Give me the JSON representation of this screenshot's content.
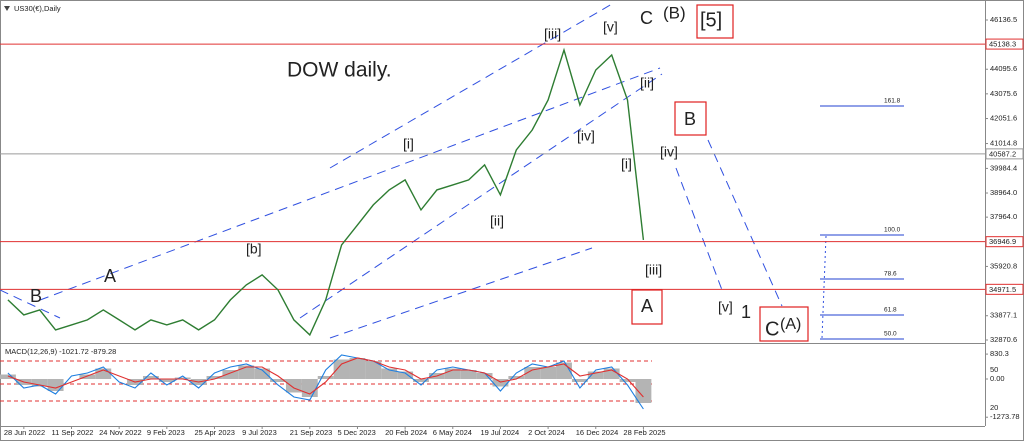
{
  "chart_data": [
    {
      "type": "line",
      "title": "US30(€),Daily",
      "subtitle": "DOW daily.",
      "categories": [
        null,
        "28 Jun 2022",
        null,
        null,
        "11 Sep 2022",
        null,
        null,
        "24 Nov 2022",
        null,
        null,
        "9 Feb 2023",
        null,
        null,
        "25 Apr 2023",
        null,
        null,
        "9 Jul 2023",
        null,
        null,
        "21 Sep 2023",
        null,
        null,
        "5 Dec 2023",
        null,
        null,
        "20 Feb 2024",
        null,
        null,
        "6 May 2024",
        null,
        null,
        "19 Jul 2024",
        null,
        null,
        "2 Oct 2024",
        null,
        null,
        "16 Dec 2024",
        null,
        null,
        "28 Feb 2025",
        null,
        null,
        null,
        null,
        null,
        null,
        null,
        null,
        null,
        null,
        null,
        null,
        null,
        null,
        null,
        null,
        null,
        null,
        null,
        null,
        null
      ],
      "values": [
        34533,
        33912,
        34119,
        33290,
        33497,
        33704,
        34119,
        33704,
        33290,
        33704,
        33497,
        33704,
        33290,
        33704,
        34533,
        35155,
        35570,
        34948,
        33704,
        33083,
        34533,
        36813,
        37642,
        38470,
        39092,
        39506,
        38263,
        39092,
        39299,
        39506,
        40128,
        38885,
        40749,
        41578,
        42821,
        44893,
        42614,
        44064,
        44686,
        42821,
        37020,
        null,
        null,
        null,
        null,
        null,
        null,
        null,
        null,
        null,
        null,
        null,
        null,
        null,
        null,
        null,
        null,
        null,
        null,
        null,
        null,
        null
      ],
      "color": "#2e7d32",
      "ylim": [
        32788,
        46634
      ],
      "yticks": [
        46136.5,
        44095.6,
        43075.6,
        42051.6,
        41014.8,
        39984.4,
        {
          "value": 38964,
          "label": "38964.0"
        },
        {
          "value": 37964,
          "label": "37964.0"
        },
        35920.8,
        33877.1,
        32870.6
      ],
      "hlines": [
        {
          "value": 45138.3,
          "color": "#e03030"
        },
        {
          "value": 40587.2,
          "color": "#9a9a9a"
        },
        {
          "value": 36946.9,
          "color": "#e03030"
        },
        {
          "value": 34971.5,
          "color": "#e03030"
        }
      ],
      "fib_levels": [
        161.8,
        {
          "value": 100,
          "label": "100.0"
        },
        78.6,
        61.8,
        {
          "value": 50,
          "label": "50.0"
        }
      ],
      "annotations": [
        {
          "text": "[5]",
          "color": "#111111",
          "boxed": true
        },
        {
          "text": "C",
          "color": "#1a1ad0",
          "boxed": false
        },
        {
          "text": "(B)",
          "color": "#e02020",
          "boxed": false
        },
        {
          "text": "[iii]",
          "color": "#2e8b2e",
          "boxed": false
        },
        {
          "text": "[v]",
          "color": "#2e8b2e",
          "boxed": false
        },
        {
          "text": "[ii]",
          "color": "#2e8b2e",
          "boxed": false
        },
        {
          "text": "[i]",
          "color": "#2e8b2e",
          "boxed": false
        },
        {
          "text": "[iv]",
          "color": "#2e8b2e",
          "boxed": false
        },
        {
          "text": "[i]",
          "color": "#2e8b2e",
          "boxed": false
        },
        {
          "text": "[iv]",
          "color": "#2e8b2e",
          "boxed": false
        },
        {
          "text": "[ii]",
          "color": "#2e8b2e",
          "boxed": false
        },
        {
          "text": "[iii]",
          "color": "#2e8b2e",
          "boxed": false
        },
        {
          "text": "[b]",
          "color": "#2e8b2e",
          "boxed": false
        },
        {
          "text": "A",
          "color": "#1a1ad0",
          "boxed": false
        },
        {
          "text": "B",
          "color": "#1a1ad0",
          "boxed": false
        },
        {
          "text": "B",
          "color": "#1a1ad0",
          "boxed": true
        },
        {
          "text": "A",
          "color": "#1a1ad0",
          "boxed": true
        },
        {
          "text": "[v]",
          "color": "#2e8b2e",
          "boxed": false
        },
        {
          "text": "1",
          "color": "#1a1ad0",
          "boxed": false
        },
        {
          "text": "C",
          "color": "#1a1ad0",
          "boxed": true
        },
        {
          "text": "(A)",
          "color": "#e02020",
          "boxed": false
        }
      ]
    },
    {
      "type": "macd",
      "title": "MACD(12,26,9) -1021.72 -879.28",
      "ylim": [
        -1500,
        1100
      ],
      "yticks": [
        830.3,
        {
          "value": 0,
          "label": "0.00"
        },
        -1273.78
      ],
      "extra_labels": [
        "50",
        "20"
      ],
      "histogram": {
        "color": "#b4b4b4",
        "values": [
          150,
          -200,
          -250,
          -400,
          0,
          150,
          350,
          0,
          -200,
          100,
          -100,
          50,
          -200,
          100,
          300,
          450,
          350,
          -100,
          -450,
          -600,
          100,
          650,
          700,
          600,
          350,
          250,
          -100,
          200,
          350,
          300,
          200,
          -250,
          100,
          400,
          400,
          550,
          -100,
          250,
          350,
          -100,
          -800,
          null,
          null,
          null,
          null,
          null,
          null,
          null,
          null,
          null,
          null,
          null,
          null,
          null,
          null,
          null,
          null,
          null,
          null,
          null,
          null,
          null
        ]
      },
      "series": [
        {
          "color": "#1e7fe0",
          "values": [
            200,
            -300,
            -200,
            -500,
            100,
            200,
            400,
            -100,
            -300,
            200,
            -200,
            100,
            -300,
            200,
            400,
            500,
            300,
            -200,
            -600,
            -700,
            300,
            800,
            700,
            600,
            300,
            200,
            -200,
            300,
            400,
            300,
            200,
            -400,
            200,
            500,
            400,
            600,
            -300,
            300,
            400,
            -200,
            -1000,
            null,
            null,
            null,
            null,
            null,
            null,
            null,
            null,
            null,
            null,
            null,
            null,
            null,
            null,
            null,
            null,
            null,
            null,
            null,
            null,
            null
          ]
        },
        {
          "color": "#e03030",
          "values": [
            100,
            -100,
            -200,
            -300,
            -100,
            100,
            300,
            100,
            -100,
            0,
            0,
            0,
            -100,
            0,
            200,
            400,
            400,
            100,
            -300,
            -500,
            -100,
            500,
            700,
            600,
            400,
            300,
            0,
            100,
            300,
            300,
            200,
            -100,
            0,
            300,
            400,
            500,
            100,
            200,
            300,
            0,
            -600,
            null,
            null,
            null,
            null,
            null,
            null,
            null,
            null,
            null,
            null,
            null,
            null,
            null,
            null,
            null,
            null,
            null,
            null,
            null,
            null,
            null
          ]
        }
      ]
    }
  ]
}
